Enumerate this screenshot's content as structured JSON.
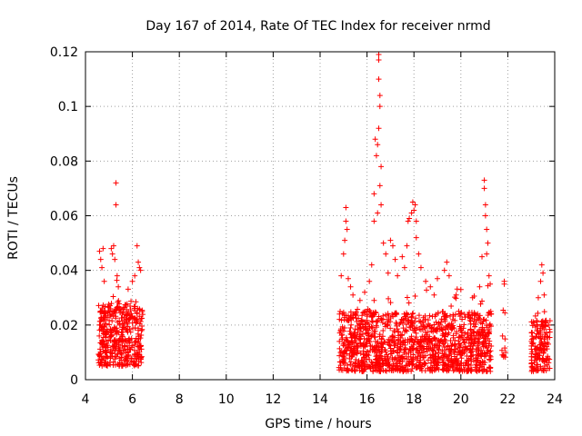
{
  "chart_data": {
    "type": "scatter",
    "title": "Day 167 of 2014, Rate Of TEC Index for receiver nrmd",
    "xlabel": "GPS time / hours",
    "ylabel": "ROTI / TECUs",
    "xlim": [
      4,
      24
    ],
    "ylim": [
      0,
      0.12
    ],
    "x_ticks": [
      4,
      6,
      8,
      10,
      12,
      14,
      16,
      18,
      20,
      22,
      24
    ],
    "x_tick_labels": [
      "4",
      "6",
      "8",
      "10",
      "12",
      "14",
      "16",
      "18",
      "20",
      "22",
      "24"
    ],
    "y_ticks": [
      0,
      0.02,
      0.04,
      0.06,
      0.08,
      0.1,
      0.12
    ],
    "y_tick_labels": [
      "0",
      "0.02",
      "0.04",
      "0.06",
      "0.08",
      "0.1",
      "0.12"
    ],
    "grid": true,
    "marker": "+",
    "series": [
      {
        "name": "ROTI",
        "color": "#ff0000",
        "clusters": [
          {
            "x_range": [
              4.55,
              6.45
            ],
            "y_base": [
              0.005,
              0.028
            ],
            "count": 420
          },
          {
            "x_range": [
              14.8,
              21.3
            ],
            "y_base": [
              0.003,
              0.025
            ],
            "count": 1300
          },
          {
            "x_range": [
              21.75,
              21.95
            ],
            "y_base": [
              0.008,
              0.016
            ],
            "count": 12
          },
          {
            "x_range": [
              23.0,
              23.8
            ],
            "y_base": [
              0.003,
              0.022
            ],
            "count": 160
          }
        ],
        "points": [
          [
            4.6,
            0.047
          ],
          [
            4.65,
            0.044
          ],
          [
            4.7,
            0.041
          ],
          [
            4.75,
            0.048
          ],
          [
            4.8,
            0.036
          ],
          [
            5.1,
            0.048
          ],
          [
            5.15,
            0.046
          ],
          [
            5.2,
            0.049
          ],
          [
            5.25,
            0.044
          ],
          [
            5.3,
            0.072
          ],
          [
            5.3,
            0.064
          ],
          [
            5.35,
            0.038
          ],
          [
            5.4,
            0.034
          ],
          [
            6.0,
            0.036
          ],
          [
            6.1,
            0.038
          ],
          [
            6.2,
            0.049
          ],
          [
            6.25,
            0.043
          ],
          [
            6.3,
            0.041
          ],
          [
            6.35,
            0.04
          ],
          [
            14.9,
            0.038
          ],
          [
            15.0,
            0.046
          ],
          [
            15.05,
            0.051
          ],
          [
            15.1,
            0.063
          ],
          [
            15.1,
            0.058
          ],
          [
            15.15,
            0.055
          ],
          [
            15.2,
            0.037
          ],
          [
            15.3,
            0.034
          ],
          [
            15.4,
            0.031
          ],
          [
            15.7,
            0.029
          ],
          [
            15.9,
            0.032
          ],
          [
            16.1,
            0.036
          ],
          [
            16.2,
            0.042
          ],
          [
            16.3,
            0.058
          ],
          [
            16.3,
            0.068
          ],
          [
            16.35,
            0.088
          ],
          [
            16.4,
            0.082
          ],
          [
            16.45,
            0.086
          ],
          [
            16.5,
            0.119
          ],
          [
            16.5,
            0.117
          ],
          [
            16.5,
            0.11
          ],
          [
            16.55,
            0.104
          ],
          [
            16.55,
            0.1
          ],
          [
            16.5,
            0.092
          ],
          [
            16.6,
            0.078
          ],
          [
            16.55,
            0.071
          ],
          [
            16.6,
            0.064
          ],
          [
            16.45,
            0.061
          ],
          [
            16.7,
            0.05
          ],
          [
            16.8,
            0.046
          ],
          [
            16.9,
            0.039
          ],
          [
            17.0,
            0.051
          ],
          [
            17.1,
            0.049
          ],
          [
            17.2,
            0.044
          ],
          [
            17.3,
            0.038
          ],
          [
            17.5,
            0.045
          ],
          [
            17.6,
            0.041
          ],
          [
            17.7,
            0.049
          ],
          [
            17.75,
            0.058
          ],
          [
            17.8,
            0.059
          ],
          [
            17.9,
            0.061
          ],
          [
            17.95,
            0.065
          ],
          [
            18.0,
            0.062
          ],
          [
            18.05,
            0.064
          ],
          [
            18.1,
            0.058
          ],
          [
            18.1,
            0.052
          ],
          [
            18.2,
            0.046
          ],
          [
            18.3,
            0.041
          ],
          [
            18.5,
            0.036
          ],
          [
            18.7,
            0.034
          ],
          [
            19.0,
            0.037
          ],
          [
            19.3,
            0.04
          ],
          [
            19.4,
            0.043
          ],
          [
            19.5,
            0.038
          ],
          [
            19.8,
            0.031
          ],
          [
            20.0,
            0.033
          ],
          [
            20.5,
            0.03
          ],
          [
            20.8,
            0.034
          ],
          [
            20.9,
            0.045
          ],
          [
            21.0,
            0.073
          ],
          [
            21.0,
            0.07
          ],
          [
            21.05,
            0.064
          ],
          [
            21.05,
            0.06
          ],
          [
            21.1,
            0.055
          ],
          [
            21.15,
            0.05
          ],
          [
            21.1,
            0.046
          ],
          [
            21.2,
            0.038
          ],
          [
            21.25,
            0.035
          ],
          [
            21.85,
            0.036
          ],
          [
            21.85,
            0.035
          ],
          [
            23.3,
            0.03
          ],
          [
            23.4,
            0.036
          ],
          [
            23.45,
            0.042
          ],
          [
            23.5,
            0.039
          ],
          [
            23.55,
            0.031
          ]
        ]
      }
    ]
  }
}
